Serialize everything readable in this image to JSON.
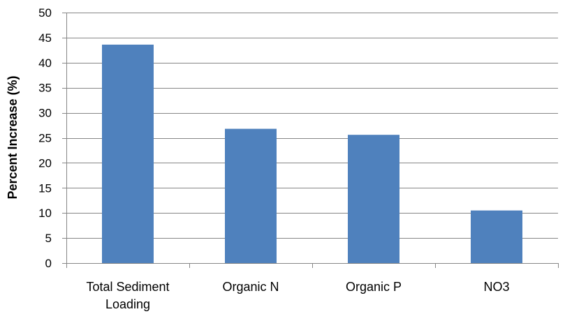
{
  "chart_data": {
    "type": "bar",
    "categories": [
      [
        "Total Sediment",
        "Loading"
      ],
      [
        "Organic N"
      ],
      [
        "Organic P"
      ],
      [
        "NO3"
      ]
    ],
    "values": [
      43.6,
      26.8,
      25.6,
      10.5
    ],
    "title": "",
    "xlabel": "",
    "ylabel": "Percent Increase (%)",
    "ylim": [
      0,
      50
    ],
    "yticks": [
      "0",
      "5",
      "10",
      "15",
      "20",
      "25",
      "30",
      "35",
      "40",
      "45",
      "50"
    ],
    "grid": true,
    "legend": "none"
  },
  "colors": {
    "bar": "#4F81BD",
    "grid": "#868686",
    "axis": "#868686"
  }
}
